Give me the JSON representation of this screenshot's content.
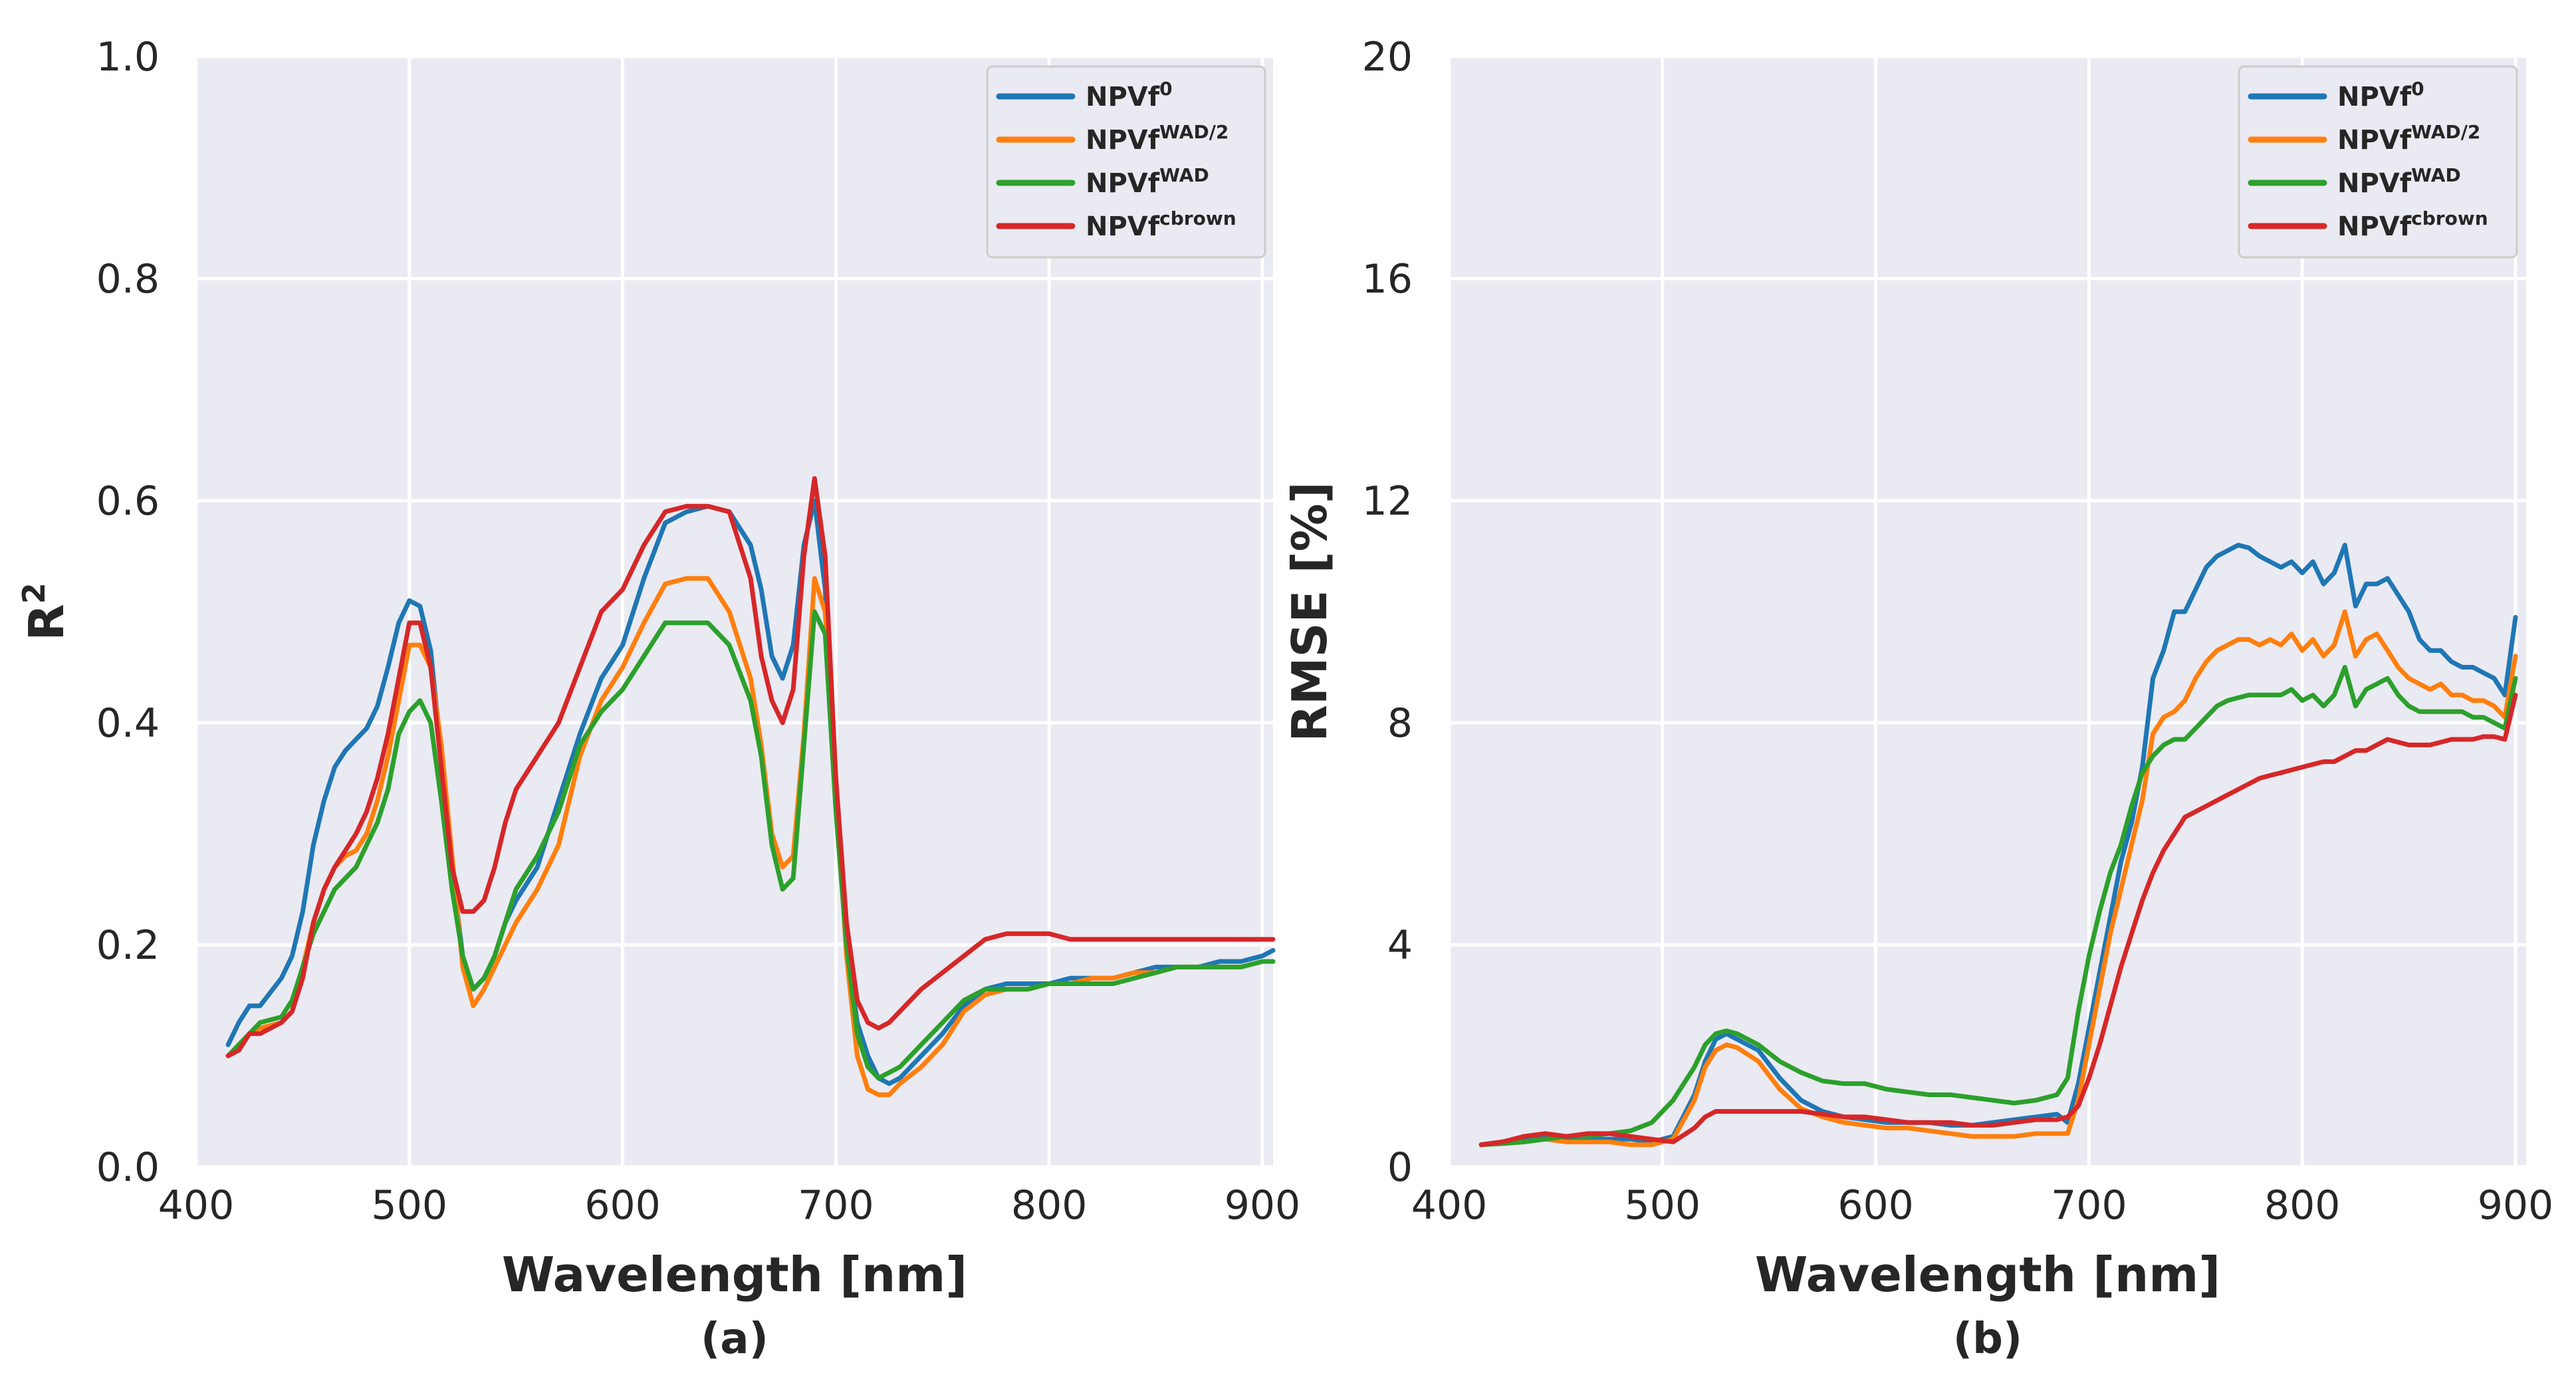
{
  "chart_data": [
    {
      "type": "line",
      "panel_label": "(a)",
      "xlabel": "Wavelength [nm]",
      "ylabel": "R",
      "ylabel_superscript": "2",
      "xlim": [
        400,
        905
      ],
      "ylim": [
        0,
        1.0
      ],
      "xticks": [
        "400",
        "500",
        "600",
        "700",
        "800",
        "900"
      ],
      "xtick_values": [
        400,
        500,
        600,
        700,
        800,
        900
      ],
      "yticks": [
        "0.0",
        "0.2",
        "0.4",
        "0.6",
        "0.8",
        "1.0"
      ],
      "ytick_values": [
        0,
        0.2,
        0.4,
        0.6,
        0.8,
        1.0
      ],
      "grid": true,
      "legend_position": "top-right",
      "x": [
        415,
        420,
        425,
        430,
        440,
        445,
        450,
        455,
        460,
        465,
        470,
        475,
        480,
        485,
        490,
        495,
        500,
        505,
        510,
        515,
        520,
        525,
        530,
        535,
        540,
        545,
        550,
        560,
        570,
        580,
        590,
        600,
        610,
        620,
        630,
        640,
        650,
        660,
        665,
        670,
        675,
        680,
        685,
        690,
        695,
        700,
        705,
        710,
        715,
        720,
        725,
        730,
        740,
        750,
        760,
        770,
        780,
        790,
        800,
        810,
        820,
        830,
        840,
        850,
        860,
        870,
        880,
        890,
        900,
        905
      ],
      "series": [
        {
          "name": "NPVf",
          "sup": "0",
          "color": "#1f77b4",
          "values": [
            0.11,
            0.13,
            0.145,
            0.145,
            0.17,
            0.19,
            0.23,
            0.29,
            0.33,
            0.36,
            0.375,
            0.385,
            0.395,
            0.415,
            0.45,
            0.49,
            0.51,
            0.505,
            0.465,
            0.37,
            0.27,
            0.19,
            0.16,
            0.17,
            0.19,
            0.22,
            0.24,
            0.27,
            0.33,
            0.39,
            0.44,
            0.47,
            0.53,
            0.58,
            0.59,
            0.595,
            0.59,
            0.56,
            0.52,
            0.46,
            0.44,
            0.47,
            0.56,
            0.6,
            0.52,
            0.34,
            0.2,
            0.13,
            0.1,
            0.08,
            0.075,
            0.08,
            0.1,
            0.12,
            0.145,
            0.16,
            0.165,
            0.165,
            0.165,
            0.17,
            0.17,
            0.17,
            0.175,
            0.18,
            0.18,
            0.18,
            0.185,
            0.185,
            0.19,
            0.195
          ]
        },
        {
          "name": "NPVf",
          "sup": "WAD/2",
          "color": "#ff7f0e",
          "values": [
            0.1,
            0.11,
            0.12,
            0.125,
            0.13,
            0.14,
            0.18,
            0.22,
            0.25,
            0.27,
            0.28,
            0.285,
            0.3,
            0.33,
            0.37,
            0.42,
            0.47,
            0.47,
            0.45,
            0.38,
            0.28,
            0.18,
            0.145,
            0.16,
            0.18,
            0.2,
            0.22,
            0.25,
            0.29,
            0.37,
            0.42,
            0.45,
            0.49,
            0.525,
            0.53,
            0.53,
            0.5,
            0.44,
            0.38,
            0.3,
            0.27,
            0.28,
            0.39,
            0.53,
            0.5,
            0.34,
            0.19,
            0.1,
            0.07,
            0.065,
            0.065,
            0.075,
            0.09,
            0.11,
            0.14,
            0.155,
            0.16,
            0.16,
            0.165,
            0.165,
            0.17,
            0.17,
            0.175,
            0.175,
            0.18,
            0.18,
            0.18,
            0.18,
            0.185,
            0.185
          ]
        },
        {
          "name": "NPVf",
          "sup": "WAD",
          "color": "#2ca02c",
          "values": [
            0.1,
            0.11,
            0.12,
            0.13,
            0.135,
            0.15,
            0.18,
            0.21,
            0.23,
            0.25,
            0.26,
            0.27,
            0.29,
            0.31,
            0.34,
            0.39,
            0.41,
            0.42,
            0.4,
            0.33,
            0.25,
            0.19,
            0.16,
            0.17,
            0.19,
            0.22,
            0.25,
            0.28,
            0.32,
            0.38,
            0.41,
            0.43,
            0.46,
            0.49,
            0.49,
            0.49,
            0.47,
            0.42,
            0.37,
            0.29,
            0.25,
            0.26,
            0.38,
            0.5,
            0.48,
            0.32,
            0.2,
            0.12,
            0.09,
            0.08,
            0.085,
            0.09,
            0.11,
            0.13,
            0.15,
            0.16,
            0.16,
            0.16,
            0.165,
            0.165,
            0.165,
            0.165,
            0.17,
            0.175,
            0.18,
            0.18,
            0.18,
            0.18,
            0.185,
            0.185
          ]
        },
        {
          "name": "NPVf",
          "sup": "cbrown",
          "color": "#d62728",
          "values": [
            0.1,
            0.105,
            0.12,
            0.12,
            0.13,
            0.14,
            0.17,
            0.22,
            0.25,
            0.27,
            0.285,
            0.3,
            0.32,
            0.35,
            0.39,
            0.44,
            0.49,
            0.49,
            0.45,
            0.36,
            0.27,
            0.23,
            0.23,
            0.24,
            0.27,
            0.31,
            0.34,
            0.37,
            0.4,
            0.45,
            0.5,
            0.52,
            0.56,
            0.59,
            0.595,
            0.595,
            0.59,
            0.53,
            0.46,
            0.42,
            0.4,
            0.43,
            0.55,
            0.62,
            0.55,
            0.35,
            0.22,
            0.15,
            0.13,
            0.125,
            0.13,
            0.14,
            0.16,
            0.175,
            0.19,
            0.205,
            0.21,
            0.21,
            0.21,
            0.205,
            0.205,
            0.205,
            0.205,
            0.205,
            0.205,
            0.205,
            0.205,
            0.205,
            0.205,
            0.205
          ]
        }
      ]
    },
    {
      "type": "line",
      "panel_label": "(b)",
      "xlabel": "Wavelength [nm]",
      "ylabel": "RMSE [%]",
      "xlim": [
        400,
        905
      ],
      "ylim": [
        0,
        20
      ],
      "xticks": [
        "400",
        "500",
        "600",
        "700",
        "800",
        "900"
      ],
      "xtick_values": [
        400,
        500,
        600,
        700,
        800,
        900
      ],
      "yticks": [
        "0",
        "4",
        "8",
        "12",
        "16",
        "20"
      ],
      "ytick_values": [
        0,
        4,
        8,
        12,
        16,
        20
      ],
      "grid": true,
      "legend_position": "top-right",
      "x": [
        415,
        425,
        435,
        445,
        455,
        465,
        475,
        485,
        495,
        505,
        515,
        520,
        525,
        530,
        535,
        545,
        555,
        565,
        575,
        585,
        595,
        605,
        615,
        625,
        635,
        645,
        655,
        665,
        675,
        685,
        690,
        695,
        700,
        705,
        710,
        715,
        720,
        725,
        730,
        735,
        740,
        745,
        750,
        755,
        760,
        765,
        770,
        775,
        780,
        785,
        790,
        795,
        800,
        805,
        810,
        815,
        820,
        825,
        830,
        835,
        840,
        845,
        850,
        855,
        860,
        865,
        870,
        875,
        880,
        885,
        890,
        895,
        900
      ],
      "series": [
        {
          "name": "NPVf",
          "sup": "0",
          "color": "#1f77b4",
          "values": [
            0.4,
            0.45,
            0.5,
            0.55,
            0.5,
            0.5,
            0.5,
            0.5,
            0.45,
            0.55,
            1.3,
            1.9,
            2.3,
            2.4,
            2.3,
            2.1,
            1.6,
            1.2,
            1.0,
            0.9,
            0.85,
            0.8,
            0.8,
            0.8,
            0.75,
            0.75,
            0.8,
            0.85,
            0.9,
            0.95,
            0.8,
            1.5,
            2.5,
            3.5,
            4.5,
            5.5,
            6.2,
            7.2,
            8.8,
            9.3,
            10.0,
            10.0,
            10.4,
            10.8,
            11.0,
            11.1,
            11.2,
            11.15,
            11.0,
            10.9,
            10.8,
            10.9,
            10.7,
            10.9,
            10.5,
            10.7,
            11.2,
            10.1,
            10.5,
            10.5,
            10.6,
            10.3,
            10.0,
            9.5,
            9.3,
            9.3,
            9.1,
            9.0,
            9.0,
            8.9,
            8.8,
            8.5,
            9.9
          ]
        },
        {
          "name": "NPVf",
          "sup": "WAD/2",
          "color": "#ff7f0e",
          "values": [
            0.4,
            0.42,
            0.45,
            0.5,
            0.45,
            0.45,
            0.45,
            0.4,
            0.4,
            0.5,
            1.2,
            1.8,
            2.1,
            2.2,
            2.15,
            1.9,
            1.4,
            1.05,
            0.9,
            0.8,
            0.75,
            0.7,
            0.7,
            0.65,
            0.6,
            0.55,
            0.55,
            0.55,
            0.6,
            0.6,
            0.6,
            1.2,
            2.2,
            3.2,
            4.2,
            5.0,
            5.8,
            6.6,
            7.8,
            8.1,
            8.2,
            8.4,
            8.8,
            9.1,
            9.3,
            9.4,
            9.5,
            9.5,
            9.4,
            9.5,
            9.4,
            9.6,
            9.3,
            9.5,
            9.2,
            9.4,
            10.0,
            9.2,
            9.5,
            9.6,
            9.3,
            9.0,
            8.8,
            8.7,
            8.6,
            8.7,
            8.5,
            8.5,
            8.4,
            8.4,
            8.3,
            8.1,
            9.2
          ]
        },
        {
          "name": "NPVf",
          "sup": "WAD",
          "color": "#2ca02c",
          "values": [
            0.4,
            0.42,
            0.45,
            0.5,
            0.55,
            0.55,
            0.6,
            0.65,
            0.8,
            1.2,
            1.8,
            2.2,
            2.4,
            2.45,
            2.4,
            2.2,
            1.9,
            1.7,
            1.55,
            1.5,
            1.5,
            1.4,
            1.35,
            1.3,
            1.3,
            1.25,
            1.2,
            1.15,
            1.2,
            1.3,
            1.6,
            2.8,
            3.8,
            4.6,
            5.3,
            5.8,
            6.5,
            7.1,
            7.4,
            7.6,
            7.7,
            7.7,
            7.9,
            8.1,
            8.3,
            8.4,
            8.45,
            8.5,
            8.5,
            8.5,
            8.5,
            8.6,
            8.4,
            8.5,
            8.3,
            8.5,
            9.0,
            8.3,
            8.6,
            8.7,
            8.8,
            8.5,
            8.3,
            8.2,
            8.2,
            8.2,
            8.2,
            8.2,
            8.1,
            8.1,
            8.0,
            7.9,
            8.8
          ]
        },
        {
          "name": "NPVf",
          "sup": "cbrown",
          "color": "#d62728",
          "values": [
            0.4,
            0.45,
            0.55,
            0.6,
            0.55,
            0.6,
            0.6,
            0.55,
            0.5,
            0.45,
            0.7,
            0.9,
            1.0,
            1.0,
            1.0,
            1.0,
            1.0,
            1.0,
            0.95,
            0.9,
            0.9,
            0.85,
            0.8,
            0.8,
            0.8,
            0.75,
            0.75,
            0.8,
            0.85,
            0.85,
            0.9,
            1.1,
            1.6,
            2.2,
            2.9,
            3.6,
            4.2,
            4.8,
            5.3,
            5.7,
            6.0,
            6.3,
            6.4,
            6.5,
            6.6,
            6.7,
            6.8,
            6.9,
            7.0,
            7.05,
            7.1,
            7.15,
            7.2,
            7.25,
            7.3,
            7.3,
            7.4,
            7.5,
            7.5,
            7.6,
            7.7,
            7.65,
            7.6,
            7.6,
            7.6,
            7.65,
            7.7,
            7.7,
            7.7,
            7.75,
            7.75,
            7.7,
            8.5
          ]
        }
      ]
    }
  ]
}
